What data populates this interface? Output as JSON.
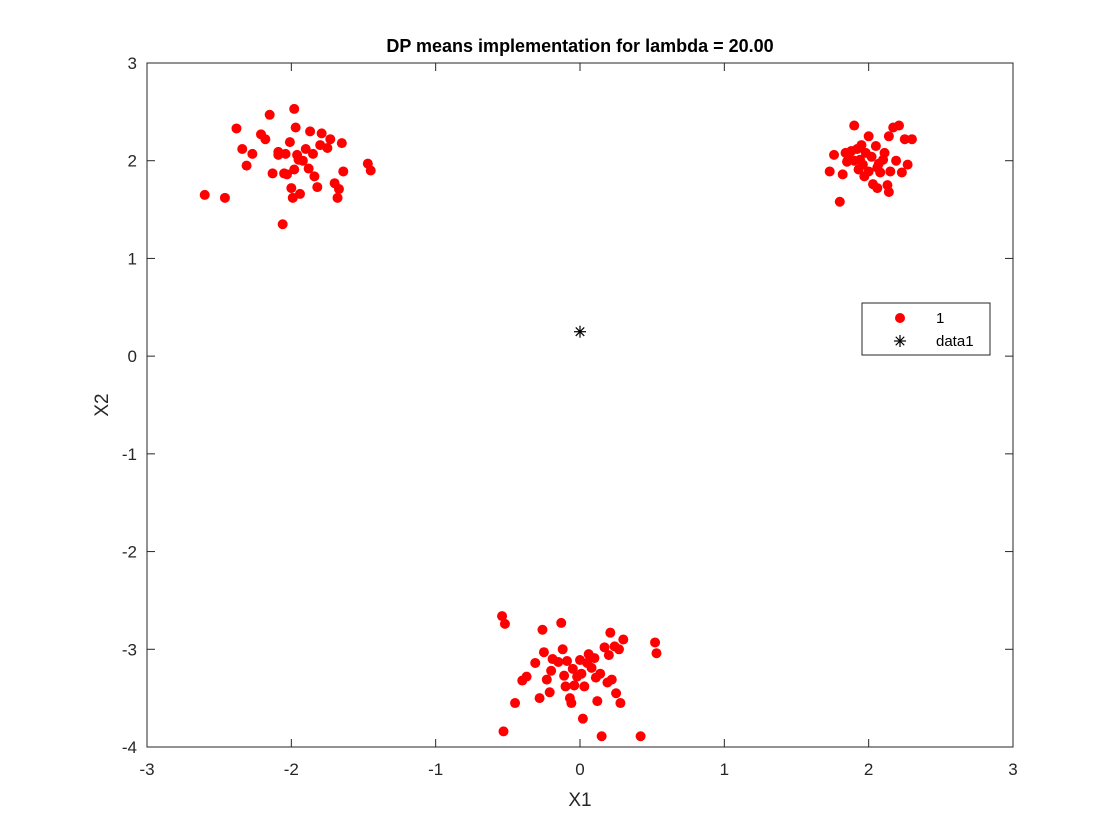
{
  "chart_data": {
    "type": "scatter",
    "title": "DP means implementation for lambda = 20.00",
    "xlabel": "X1",
    "ylabel": "X2",
    "xlim": [
      -3,
      3
    ],
    "ylim": [
      -4,
      3
    ],
    "xticks": [
      "-3",
      "-2",
      "-1",
      "0",
      "1",
      "2",
      "3"
    ],
    "yticks": [
      "-4",
      "-3",
      "-2",
      "-1",
      "0",
      "1",
      "2",
      "3"
    ],
    "grid": false,
    "legend": {
      "placement": "right",
      "entries": [
        "1",
        "data1"
      ]
    },
    "colors": {
      "series1": "#ff0000",
      "data1": "#000000"
    },
    "series": [
      {
        "name": "1",
        "marker": "filled-circle",
        "points": [
          [
            -2.6,
            1.65
          ],
          [
            -2.46,
            1.62
          ],
          [
            -2.38,
            2.33
          ],
          [
            -2.34,
            2.12
          ],
          [
            -2.31,
            1.95
          ],
          [
            -2.27,
            2.07
          ],
          [
            -2.21,
            2.27
          ],
          [
            -2.18,
            2.22
          ],
          [
            -2.15,
            2.47
          ],
          [
            -2.13,
            1.87
          ],
          [
            -2.09,
            2.09
          ],
          [
            -2.06,
            1.35
          ],
          [
            -2.04,
            2.07
          ],
          [
            -2.03,
            1.86
          ],
          [
            -2.01,
            2.19
          ],
          [
            -2.0,
            1.72
          ],
          [
            -1.99,
            1.62
          ],
          [
            -1.98,
            2.53
          ],
          [
            -1.97,
            2.34
          ],
          [
            -1.96,
            2.06
          ],
          [
            -1.94,
            1.66
          ],
          [
            -1.92,
            2.0
          ],
          [
            -1.9,
            2.12
          ],
          [
            -1.88,
            1.92
          ],
          [
            -1.87,
            2.3
          ],
          [
            -1.85,
            2.07
          ],
          [
            -1.84,
            1.84
          ],
          [
            -1.82,
            1.73
          ],
          [
            -1.8,
            2.16
          ],
          [
            -1.79,
            2.28
          ],
          [
            -1.75,
            2.13
          ],
          [
            -1.73,
            2.22
          ],
          [
            -1.7,
            1.77
          ],
          [
            -1.68,
            1.62
          ],
          [
            -1.67,
            1.71
          ],
          [
            -1.65,
            2.18
          ],
          [
            -1.64,
            1.89
          ],
          [
            -1.47,
            1.97
          ],
          [
            -1.45,
            1.9
          ],
          [
            -2.09,
            2.06
          ],
          [
            -1.98,
            1.91
          ],
          [
            -1.95,
            2.01
          ],
          [
            -2.05,
            1.87
          ],
          [
            1.73,
            1.89
          ],
          [
            1.76,
            2.06
          ],
          [
            1.8,
            1.58
          ],
          [
            1.82,
            1.86
          ],
          [
            1.84,
            2.08
          ],
          [
            1.85,
            1.99
          ],
          [
            1.86,
            2.05
          ],
          [
            1.88,
            2.1
          ],
          [
            1.9,
            2.0
          ],
          [
            1.9,
            2.36
          ],
          [
            1.92,
            2.12
          ],
          [
            1.93,
            1.91
          ],
          [
            1.95,
            2.16
          ],
          [
            1.96,
            1.96
          ],
          [
            1.97,
            1.84
          ],
          [
            1.98,
            2.08
          ],
          [
            2.0,
            2.25
          ],
          [
            2.0,
            1.89
          ],
          [
            2.02,
            2.04
          ],
          [
            2.03,
            1.76
          ],
          [
            2.05,
            2.15
          ],
          [
            2.06,
            1.72
          ],
          [
            2.07,
            1.97
          ],
          [
            2.08,
            1.88
          ],
          [
            2.1,
            2.01
          ],
          [
            2.11,
            2.08
          ],
          [
            2.13,
            1.75
          ],
          [
            2.14,
            2.25
          ],
          [
            2.14,
            1.68
          ],
          [
            2.15,
            1.89
          ],
          [
            2.17,
            2.34
          ],
          [
            2.19,
            2.0
          ],
          [
            2.21,
            2.36
          ],
          [
            2.23,
            1.88
          ],
          [
            2.25,
            2.22
          ],
          [
            2.27,
            1.96
          ],
          [
            2.3,
            2.22
          ],
          [
            1.87,
            2.02
          ],
          [
            1.94,
            2.01
          ],
          [
            2.06,
            1.93
          ],
          [
            -0.54,
            -2.66
          ],
          [
            -0.52,
            -2.74
          ],
          [
            -0.53,
            -3.84
          ],
          [
            -0.45,
            -3.55
          ],
          [
            -0.4,
            -3.32
          ],
          [
            -0.37,
            -3.28
          ],
          [
            -0.31,
            -3.14
          ],
          [
            -0.28,
            -3.5
          ],
          [
            -0.26,
            -2.8
          ],
          [
            -0.25,
            -3.03
          ],
          [
            -0.23,
            -3.31
          ],
          [
            -0.21,
            -3.44
          ],
          [
            -0.2,
            -3.22
          ],
          [
            -0.19,
            -3.1
          ],
          [
            -0.15,
            -3.13
          ],
          [
            -0.13,
            -2.73
          ],
          [
            -0.12,
            -3.0
          ],
          [
            -0.11,
            -3.27
          ],
          [
            -0.1,
            -3.38
          ],
          [
            -0.09,
            -3.12
          ],
          [
            -0.07,
            -3.5
          ],
          [
            -0.06,
            -3.55
          ],
          [
            -0.04,
            -3.37
          ],
          [
            -0.02,
            -3.28
          ],
          [
            0.0,
            -3.11
          ],
          [
            0.01,
            -3.25
          ],
          [
            0.02,
            -3.71
          ],
          [
            0.03,
            -3.38
          ],
          [
            0.05,
            -3.14
          ],
          [
            0.06,
            -3.05
          ],
          [
            0.08,
            -3.19
          ],
          [
            0.1,
            -3.09
          ],
          [
            0.11,
            -3.29
          ],
          [
            0.12,
            -3.53
          ],
          [
            0.14,
            -3.25
          ],
          [
            0.15,
            -3.89
          ],
          [
            0.17,
            -2.98
          ],
          [
            0.19,
            -3.34
          ],
          [
            0.2,
            -3.06
          ],
          [
            0.21,
            -2.83
          ],
          [
            0.22,
            -3.31
          ],
          [
            0.24,
            -2.97
          ],
          [
            0.25,
            -3.45
          ],
          [
            0.27,
            -3.0
          ],
          [
            0.28,
            -3.55
          ],
          [
            0.3,
            -2.9
          ],
          [
            0.42,
            -3.89
          ],
          [
            0.52,
            -2.93
          ],
          [
            0.53,
            -3.04
          ],
          [
            -0.05,
            -3.2
          ]
        ]
      },
      {
        "name": "data1",
        "marker": "asterisk",
        "points": [
          [
            0.0,
            0.25
          ]
        ]
      }
    ]
  }
}
